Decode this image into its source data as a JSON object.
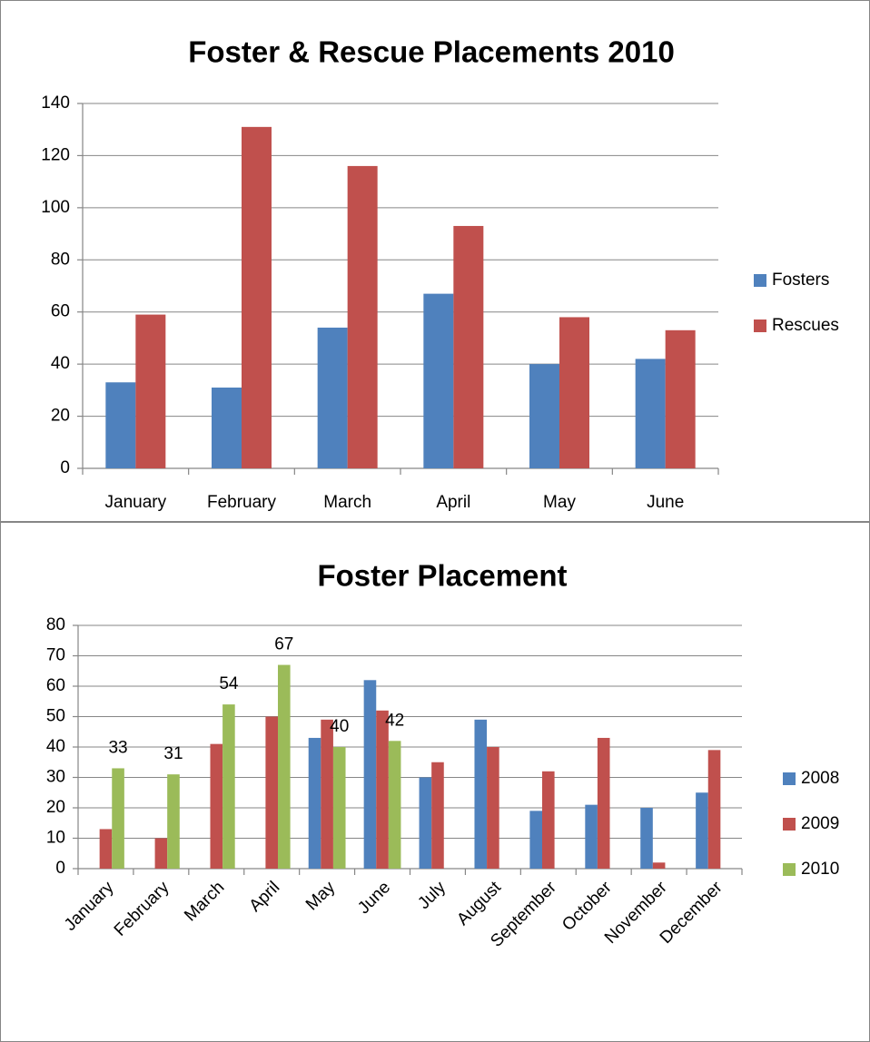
{
  "chart_data": [
    {
      "type": "bar",
      "title": "Foster & Rescue Placements 2010",
      "categories": [
        "January",
        "February",
        "March",
        "April",
        "May",
        "June"
      ],
      "series": [
        {
          "name": "Fosters",
          "color": "#4f81bd",
          "values": [
            33,
            31,
            54,
            67,
            40,
            42
          ]
        },
        {
          "name": "Rescues",
          "color": "#c0504d",
          "values": [
            59,
            131,
            116,
            93,
            58,
            53
          ]
        }
      ],
      "ylim": [
        0,
        140
      ],
      "yticks": [
        0,
        20,
        40,
        60,
        80,
        100,
        120,
        140
      ],
      "grid": true,
      "legend": "right"
    },
    {
      "type": "bar",
      "title": "Foster Placement",
      "categories": [
        "January",
        "February",
        "March",
        "April",
        "May",
        "June",
        "July",
        "August",
        "September",
        "October",
        "November",
        "December"
      ],
      "series": [
        {
          "name": "2008",
          "color": "#4f81bd",
          "values": [
            null,
            null,
            null,
            null,
            43,
            62,
            30,
            49,
            19,
            21,
            20,
            25
          ]
        },
        {
          "name": "2009",
          "color": "#c0504d",
          "values": [
            13,
            10,
            41,
            50,
            49,
            52,
            35,
            40,
            32,
            43,
            2,
            39
          ]
        },
        {
          "name": "2010",
          "color": "#9bbb59",
          "values": [
            33,
            31,
            54,
            67,
            40,
            42,
            null,
            null,
            null,
            null,
            null,
            null
          ],
          "data_labels": true
        }
      ],
      "ylim": [
        0,
        80
      ],
      "yticks": [
        0,
        10,
        20,
        30,
        40,
        50,
        60,
        70,
        80
      ],
      "grid": true,
      "legend": "right",
      "rotate_labels": true
    }
  ]
}
